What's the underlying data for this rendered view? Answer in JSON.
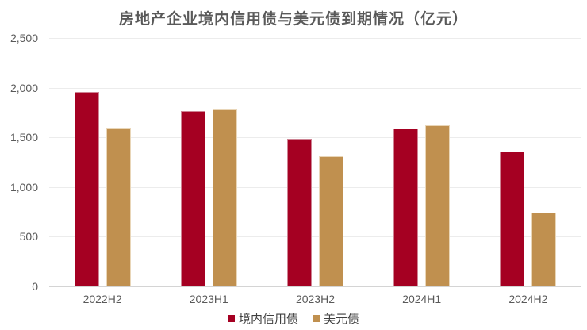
{
  "title": "房地产企业境内信用债与美元债到期情况（亿元）",
  "colors": {
    "domestic_bar": "#A50022",
    "domestic_bar_border": "#CE8393",
    "usd_bar": "#C0904F",
    "usd_bar_border": "#E9D6B8",
    "title_text": "#595959",
    "axis_text": "#595959",
    "legend_text": "#3F3F3F",
    "gridline": "#ECECEC",
    "baseline": "#D4D4D4",
    "background": "#FFFFFF"
  },
  "chart_data": {
    "type": "bar",
    "title": "房地产企业境内信用债与美元债到期情况（亿元）",
    "categories": [
      "2022H2",
      "2023H1",
      "2023H2",
      "2024H1",
      "2024H2"
    ],
    "series": [
      {
        "name": "境内信用债",
        "color": "#A50022",
        "values": [
          1955,
          1765,
          1485,
          1590,
          1355
        ]
      },
      {
        "name": "美元债",
        "color": "#C0904F",
        "values": [
          1595,
          1780,
          1310,
          1620,
          740
        ]
      }
    ],
    "xlabel": "",
    "ylabel": "",
    "ylim": [
      0,
      2500
    ],
    "ytick_step": 500,
    "ytick_labels": [
      "0",
      "500",
      "1,000",
      "1,500",
      "2,000",
      "2,500"
    ],
    "grid": true,
    "legend_position": "bottom"
  }
}
